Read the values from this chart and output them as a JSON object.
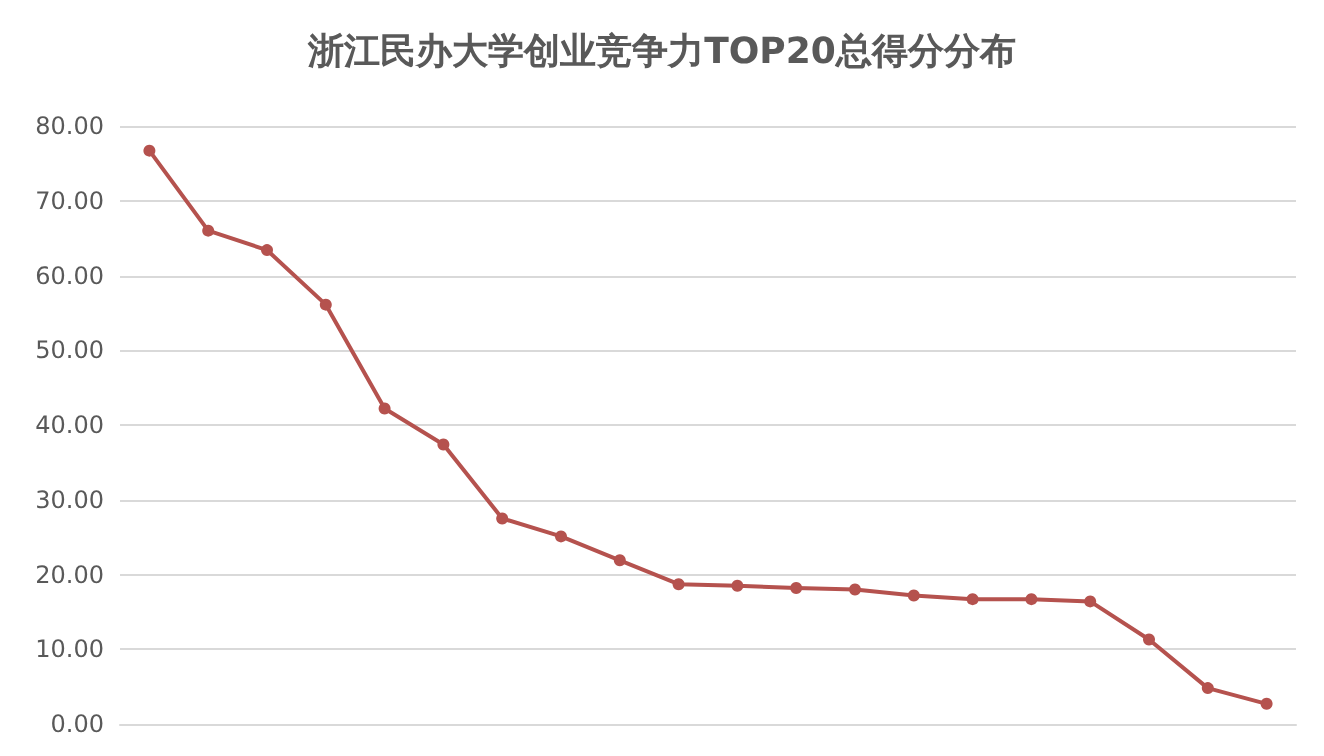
{
  "chart_data": {
    "type": "line",
    "title": "浙江民办大学创业竞争力TOP20总得分分布",
    "categories": [
      null,
      null,
      null,
      null,
      null,
      null,
      null,
      null,
      null,
      null,
      null,
      null,
      null,
      null,
      null,
      null,
      null,
      null,
      null,
      null
    ],
    "series": [
      {
        "color": "#b5524e",
        "values": [
          76.7,
          66.0,
          63.4,
          56.1,
          42.2,
          37.4,
          27.5,
          25.1,
          21.9,
          18.7,
          18.5,
          18.2,
          18.0,
          17.2,
          16.7,
          16.7,
          16.4,
          11.3,
          4.8,
          2.7
        ]
      }
    ],
    "ylim": [
      0,
      80
    ],
    "yticks": [
      {
        "value": 0,
        "label": "0.00"
      },
      {
        "value": 10,
        "label": "10.00"
      },
      {
        "value": 20,
        "label": "20.00"
      },
      {
        "value": 30,
        "label": "30.00"
      },
      {
        "value": 40,
        "label": "40.00"
      },
      {
        "value": 50,
        "label": "50.00"
      },
      {
        "value": 60,
        "label": "60.00"
      },
      {
        "value": 70,
        "label": "70.00"
      },
      {
        "value": 80,
        "label": "80.00"
      }
    ],
    "grid": "y",
    "marker": "circle",
    "line_style": "solid"
  }
}
